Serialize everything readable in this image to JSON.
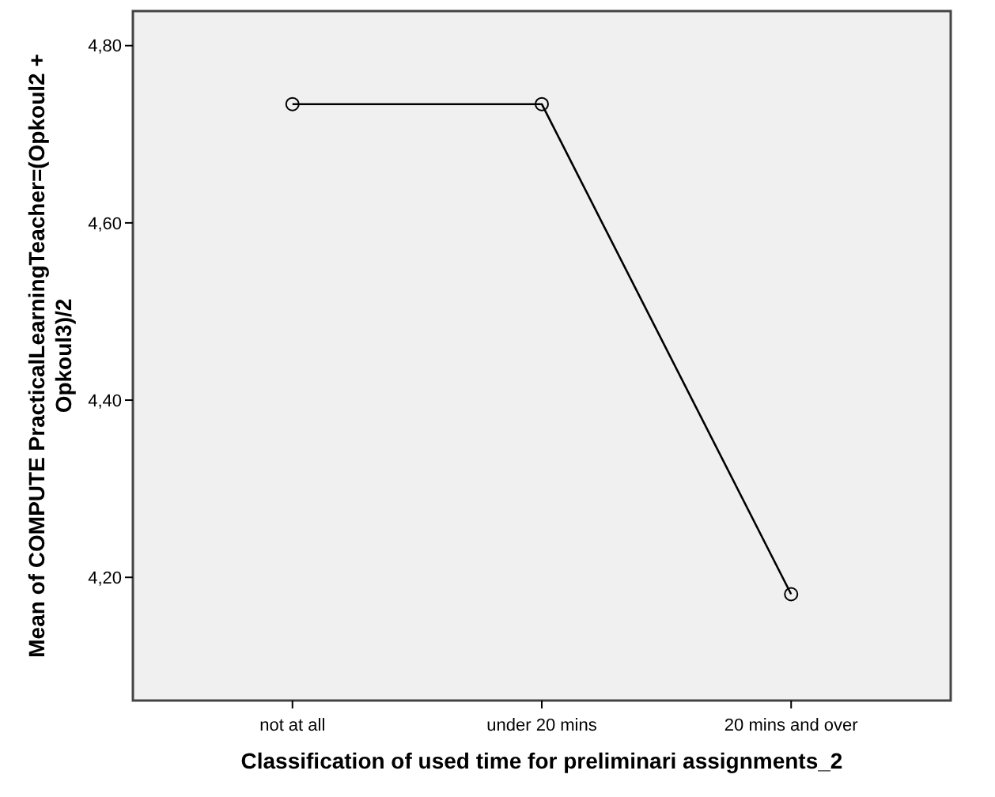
{
  "chart_data": {
    "type": "line",
    "xlabel": "Classification of used time for preliminari assignments_2",
    "ylabel": "Mean of COMPUTE PracticalLearningTeacher=(Opkoul2 + Opkoul3)/2",
    "categories": [
      "not at all",
      "under 20 mins",
      "20 mins and over"
    ],
    "series": [
      {
        "color": "#000000",
        "values": [
          4.734,
          4.734,
          4.181
        ]
      }
    ],
    "ylim": [
      4.061,
      4.839
    ],
    "yticks": [
      {
        "value": 4.2,
        "label": "4,20"
      },
      {
        "value": 4.4,
        "label": "4,40"
      },
      {
        "value": 4.6,
        "label": "4,60"
      },
      {
        "value": 4.8,
        "label": "4,80"
      }
    ],
    "marker": "circle"
  }
}
